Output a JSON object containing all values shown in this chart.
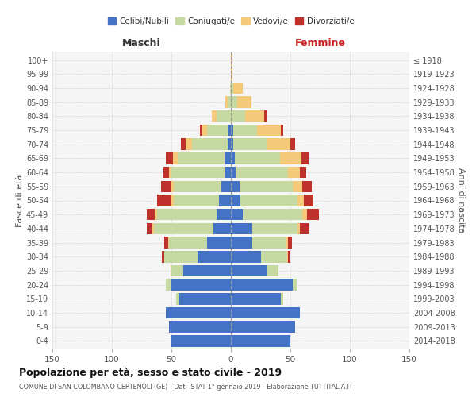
{
  "age_groups": [
    "0-4",
    "5-9",
    "10-14",
    "15-19",
    "20-24",
    "25-29",
    "30-34",
    "35-39",
    "40-44",
    "45-49",
    "50-54",
    "55-59",
    "60-64",
    "65-69",
    "70-74",
    "75-79",
    "80-84",
    "85-89",
    "90-94",
    "95-99",
    "100+"
  ],
  "birth_years": [
    "2014-2018",
    "2009-2013",
    "2004-2008",
    "1999-2003",
    "1994-1998",
    "1989-1993",
    "1984-1988",
    "1979-1983",
    "1974-1978",
    "1969-1973",
    "1964-1968",
    "1959-1963",
    "1954-1958",
    "1949-1953",
    "1944-1948",
    "1939-1943",
    "1934-1938",
    "1929-1933",
    "1924-1928",
    "1919-1923",
    "≤ 1918"
  ],
  "male": {
    "celibi": [
      50,
      52,
      55,
      44,
      50,
      40,
      28,
      20,
      15,
      12,
      10,
      8,
      5,
      5,
      3,
      2,
      0,
      0,
      0,
      0,
      0
    ],
    "coniugati": [
      0,
      0,
      0,
      2,
      5,
      10,
      28,
      32,
      50,
      50,
      38,
      40,
      45,
      40,
      30,
      18,
      12,
      3,
      1,
      0,
      0
    ],
    "vedovi": [
      0,
      0,
      0,
      0,
      0,
      1,
      0,
      1,
      1,
      2,
      2,
      2,
      2,
      4,
      5,
      4,
      4,
      2,
      0,
      0,
      0
    ],
    "divorziati": [
      0,
      0,
      0,
      0,
      0,
      0,
      2,
      3,
      5,
      7,
      12,
      9,
      5,
      6,
      4,
      2,
      0,
      0,
      0,
      0,
      0
    ]
  },
  "female": {
    "nubili": [
      50,
      54,
      58,
      42,
      52,
      30,
      25,
      18,
      18,
      10,
      8,
      7,
      4,
      3,
      2,
      2,
      0,
      0,
      0,
      0,
      0
    ],
    "coniugate": [
      0,
      0,
      0,
      2,
      4,
      10,
      22,
      28,
      38,
      50,
      48,
      45,
      44,
      38,
      28,
      20,
      12,
      5,
      2,
      0,
      0
    ],
    "vedove": [
      0,
      0,
      0,
      0,
      0,
      0,
      1,
      2,
      2,
      4,
      5,
      8,
      10,
      18,
      20,
      20,
      16,
      12,
      8,
      1,
      1
    ],
    "divorziate": [
      0,
      0,
      0,
      0,
      0,
      0,
      2,
      3,
      8,
      10,
      8,
      8,
      5,
      6,
      4,
      2,
      2,
      0,
      0,
      0,
      0
    ]
  },
  "colors": {
    "celibi_nubili": "#4472C4",
    "coniugati": "#C6D9A0",
    "vedovi": "#F5C97A",
    "divorziati": "#C0312B"
  },
  "title": "Popolazione per età, sesso e stato civile - 2019",
  "subtitle": "COMUNE DI SAN COLOMBANO CERTENOLI (GE) - Dati ISTAT 1° gennaio 2019 - Elaborazione TUTTITALIA.IT",
  "xlabel_left": "Maschi",
  "xlabel_right": "Femmine",
  "ylabel_left": "Fasce di età",
  "ylabel_right": "Anni di nascita",
  "xlim": 150,
  "legend_labels": [
    "Celibi/Nubili",
    "Coniugati/e",
    "Vedovi/e",
    "Divorziati/e"
  ],
  "background_color": "#ffffff",
  "grid_color": "#cccccc"
}
